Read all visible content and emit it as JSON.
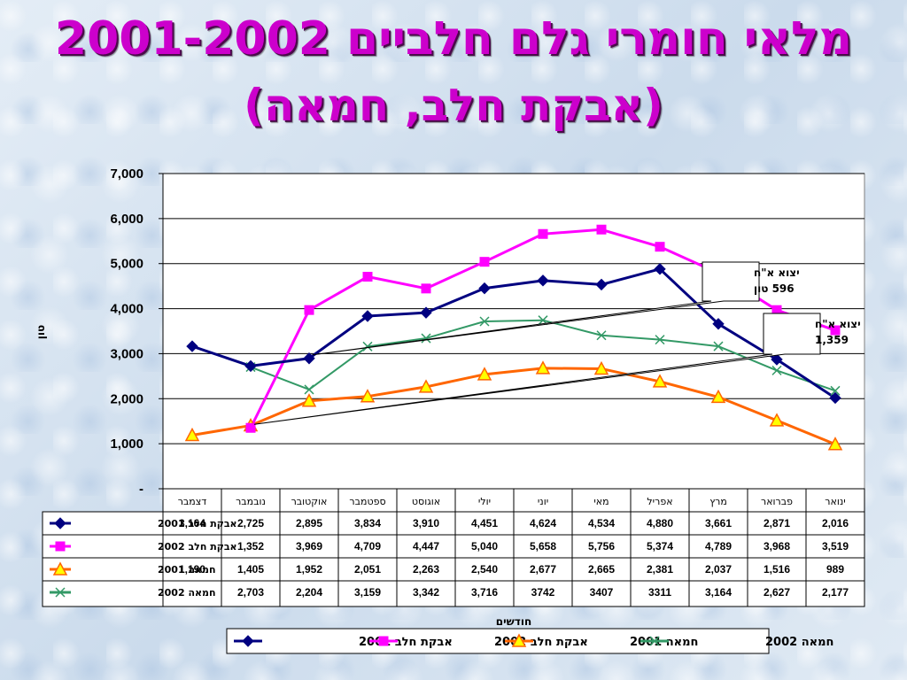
{
  "title_line1": "מלאי חומרי גלם חלביים 2001-2002",
  "title_line2": "(אבקת חלב, חמאה)",
  "chart_data": {
    "type": "line",
    "ylabel": "טון",
    "xlabel": "חודשים",
    "ylim": [
      0,
      7000
    ],
    "yticks": [
      {
        "value": 0,
        "label": "-"
      },
      {
        "value": 1000,
        "label": "1,000"
      },
      {
        "value": 2000,
        "label": "2,000"
      },
      {
        "value": 3000,
        "label": "3,000"
      },
      {
        "value": 4000,
        "label": "4,000"
      },
      {
        "value": 5000,
        "label": "5,000"
      },
      {
        "value": 6000,
        "label": "6,000"
      },
      {
        "value": 7000,
        "label": "7,000"
      }
    ],
    "categories": [
      "ינואר",
      "פברואר",
      "מרץ",
      "אפריל",
      "מאי",
      "יוני",
      "יולי",
      "אוגוסט",
      "ספטמבר",
      "אוקטובר",
      "נובמבר",
      "דצמבר"
    ],
    "grid": true,
    "legend_position": "bottom",
    "series": [
      {
        "name": "אבקת חלב 2001",
        "color": "#000080",
        "marker": "diamond",
        "values": [
          2016,
          2871,
          3661,
          4880,
          4534,
          4624,
          4451,
          3910,
          3834,
          2895,
          2725,
          3164
        ],
        "table_labels": [
          "2,016",
          "2,871",
          "3,661",
          "4,880",
          "4,534",
          "4,624",
          "4,451",
          "3,910",
          "3,834",
          "2,895",
          "2,725",
          "3,164"
        ]
      },
      {
        "name": "אבקת חלב 2002",
        "color": "#ff00ff",
        "marker": "square",
        "values": [
          3519,
          3968,
          4789,
          5374,
          5756,
          5658,
          5040,
          4447,
          4709,
          3969,
          1352,
          null
        ],
        "table_labels": [
          "3,519",
          "3,968",
          "4,789",
          "5,374",
          "5,756",
          "5,658",
          "5,040",
          "4,447",
          "4,709",
          "3,969",
          "1,352",
          ""
        ]
      },
      {
        "name": "חמאה 2001",
        "color": "#ff6600",
        "marker": "triangle",
        "marker_fill": "#ffff00",
        "values": [
          989,
          1516,
          2037,
          2381,
          2665,
          2677,
          2540,
          2263,
          2051,
          1952,
          1405,
          1190
        ],
        "table_labels": [
          "989",
          "1,516",
          "2,037",
          "2,381",
          "2,665",
          "2,677",
          "2,540",
          "2,263",
          "2,051",
          "1,952",
          "1,405",
          "1,190"
        ]
      },
      {
        "name": "חמאה 2002",
        "color": "#339966",
        "marker": "x",
        "values": [
          2177,
          2627,
          3164,
          3311,
          3407,
          3742,
          3716,
          3342,
          3159,
          2204,
          2703,
          null
        ],
        "table_labels": [
          "2,177",
          "2,627",
          "3,164",
          "3311",
          "3407",
          "3742",
          "3,716",
          "3,342",
          "3,159",
          "2,204",
          "2,703",
          ""
        ]
      }
    ],
    "annotations": [
      {
        "line1": "יצוא א\"ח",
        "line2": "596 טון",
        "near_series": 0,
        "near_category": 9
      },
      {
        "line1": "יצוא א\"ח",
        "line2": "1,359",
        "near_series": 1,
        "near_category": 10
      }
    ]
  }
}
